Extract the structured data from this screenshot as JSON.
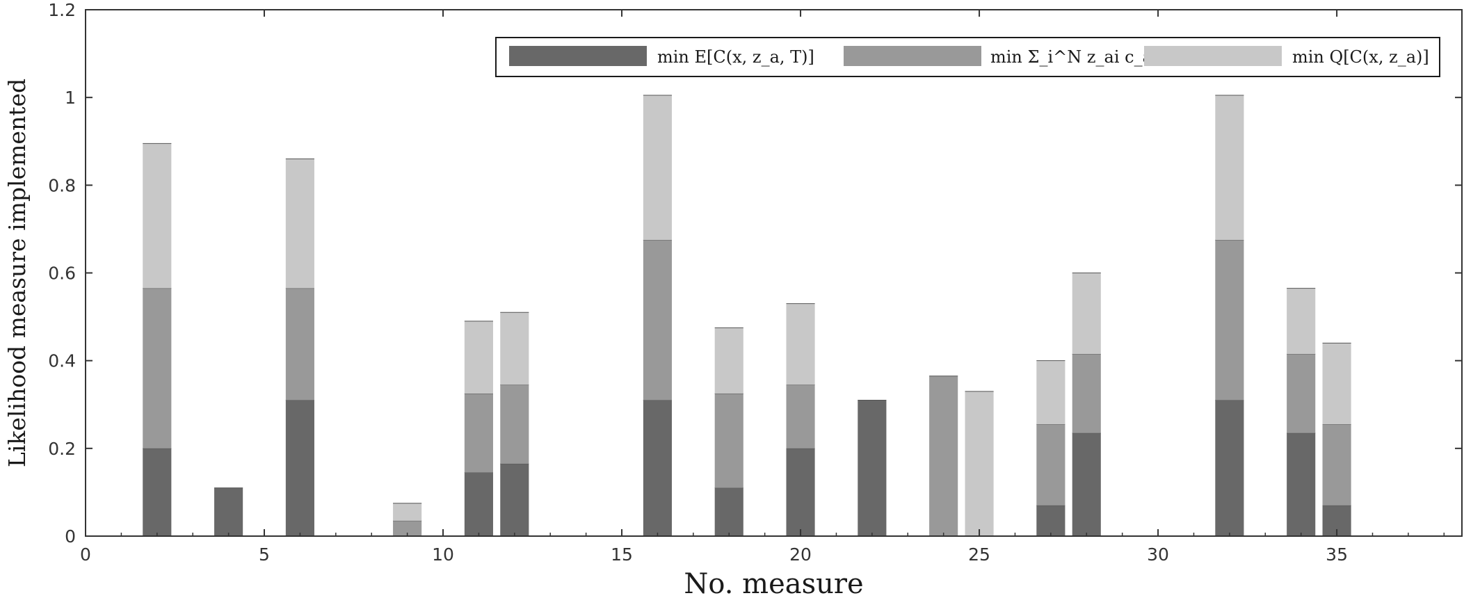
{
  "chart_data": {
    "type": "bar",
    "stacked": true,
    "xlabel": "No. measure",
    "ylabel": "Likelihood measure implemented",
    "xlim": [
      0,
      38.5
    ],
    "ylim": [
      0,
      1.2
    ],
    "xticks": [
      0,
      5,
      10,
      15,
      20,
      25,
      30,
      35
    ],
    "yticks": [
      0,
      0.2,
      0.4,
      0.6,
      0.8,
      1,
      1.2
    ],
    "ytick_labels": [
      "0",
      "0.2",
      "0.4",
      "0.6",
      "0.8",
      "1",
      "1.2"
    ],
    "grid": false,
    "legend_position": "top-right",
    "colors": [
      "#686868",
      "#999999",
      "#c8c8c8"
    ],
    "x": [
      1,
      2,
      3,
      4,
      5,
      6,
      7,
      8,
      9,
      10,
      11,
      12,
      13,
      14,
      15,
      16,
      17,
      18,
      19,
      20,
      21,
      22,
      23,
      24,
      25,
      26,
      27,
      28,
      29,
      30,
      31,
      32,
      33,
      34,
      35,
      36,
      37,
      38
    ],
    "series": [
      {
        "name": "min E[C(x, z_a, T)]",
        "values": [
          0,
          0.2,
          0,
          0.11,
          0,
          0.31,
          0,
          0,
          0,
          0,
          0.145,
          0.165,
          0,
          0,
          0,
          0.31,
          0,
          0.11,
          0,
          0.2,
          0,
          0.31,
          0,
          0,
          0,
          0,
          0.07,
          0.235,
          0,
          0,
          0,
          0.31,
          0,
          0.235,
          0.07,
          0,
          0,
          0
        ]
      },
      {
        "name": "min Σ_i^N z_ai c_ai",
        "values": [
          0,
          0.365,
          0,
          0,
          0,
          0.255,
          0,
          0,
          0.035,
          0,
          0.18,
          0.18,
          0,
          0,
          0,
          0.365,
          0,
          0.215,
          0,
          0.145,
          0,
          0,
          0,
          0.365,
          0,
          0,
          0.185,
          0.18,
          0,
          0,
          0,
          0.365,
          0,
          0.18,
          0.185,
          0,
          0,
          0
        ]
      },
      {
        "name": "min Q[C(x, z_a)]",
        "values": [
          0,
          0.33,
          0,
          0,
          0,
          0.295,
          0,
          0,
          0.04,
          0,
          0.165,
          0.165,
          0,
          0,
          0,
          0.33,
          0,
          0.15,
          0,
          0.185,
          0,
          0,
          0,
          0,
          0.33,
          0,
          0.145,
          0.185,
          0,
          0,
          0,
          0.33,
          0,
          0.15,
          0.185,
          0,
          0,
          0
        ]
      }
    ]
  }
}
